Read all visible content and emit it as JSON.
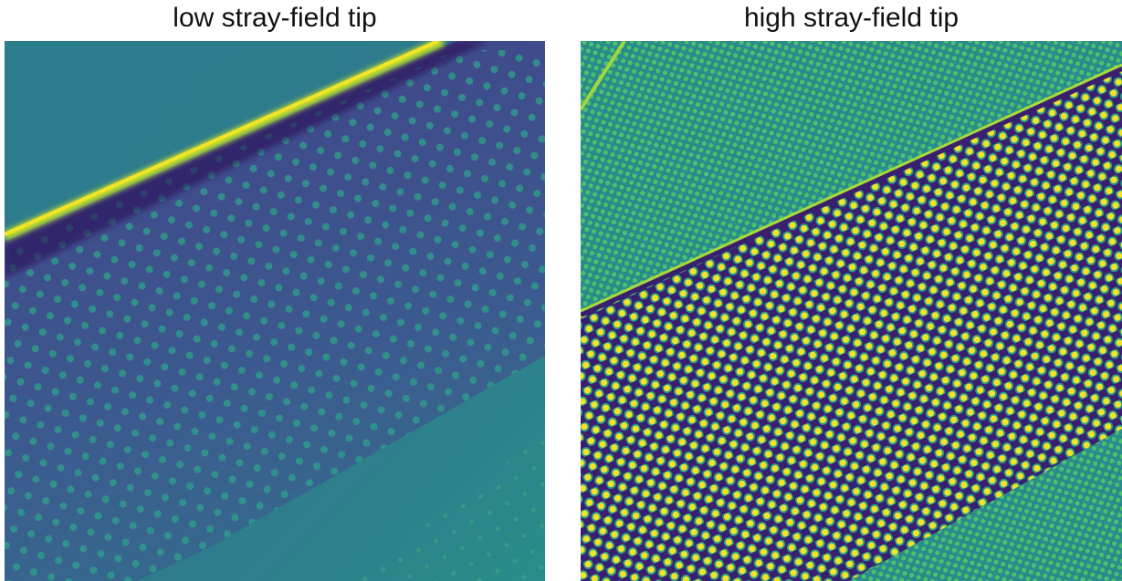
{
  "panels": [
    {
      "title": "low stray-field tip"
    },
    {
      "title": "high stray-field tip"
    }
  ]
}
